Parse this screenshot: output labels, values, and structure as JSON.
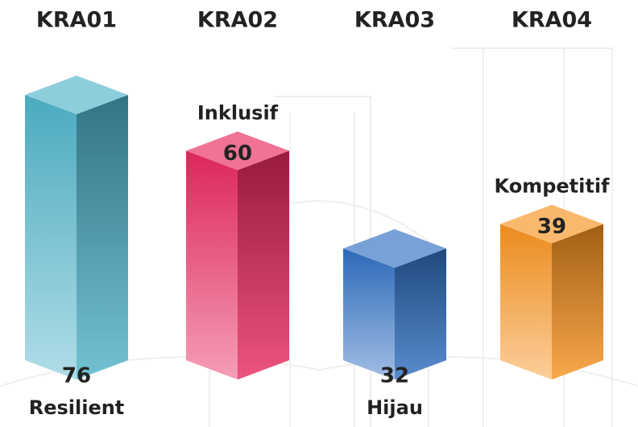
{
  "chart_data": {
    "type": "bar",
    "categories": [
      "KRA01",
      "KRA02",
      "KRA03",
      "KRA04"
    ],
    "values": [
      76,
      60,
      32,
      39
    ],
    "labels": [
      "Resilient",
      "Inklusif",
      "Hijau",
      "Kompetitif"
    ],
    "colors": [
      "#4fb3c9",
      "#e8285e",
      "#2f6fc2",
      "#f7921e"
    ]
  }
}
